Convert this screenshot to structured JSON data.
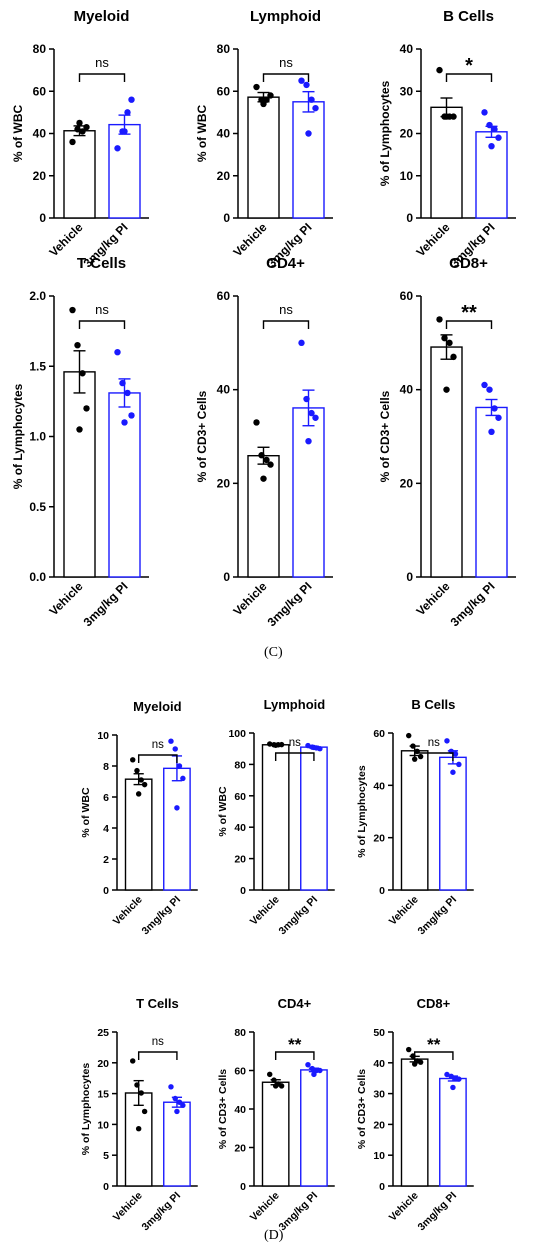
{
  "panel_labels": [
    "(C)",
    "(D)"
  ],
  "colors": {
    "vehicle": "#000000",
    "treated": "#1a1aff"
  },
  "chart_data": [
    {
      "type": "bar",
      "title": "Myeloid",
      "ylabel": "% of WBC",
      "categories": [
        "Vehicle",
        "3mg/kg PI"
      ],
      "ylim": [
        0,
        80
      ],
      "yticks": [
        0,
        20,
        40,
        60,
        80
      ],
      "significance": "ns",
      "series": [
        {
          "values": [
            41.3,
            44.2
          ],
          "sem": [
            2.3,
            4.5
          ],
          "points": [
            [
              36,
              42,
              41,
              43,
              45
            ],
            [
              33,
              41,
              50,
              56,
              41
            ]
          ]
        }
      ]
    },
    {
      "type": "bar",
      "title": "Lymphoid",
      "ylabel": "% of WBC",
      "categories": [
        "Vehicle",
        "3mg/kg PI"
      ],
      "ylim": [
        0,
        80
      ],
      "yticks": [
        0,
        20,
        40,
        60,
        80
      ],
      "significance": "ns",
      "series": [
        {
          "values": [
            57.2,
            55.0
          ],
          "sem": [
            2.2,
            4.8
          ],
          "points": [
            [
              62,
              56,
              56,
              58,
              54
            ],
            [
              65,
              63,
              56,
              52,
              40
            ]
          ]
        }
      ]
    },
    {
      "type": "bar",
      "title": "B Cells",
      "ylabel": "% of Lymphocytes",
      "categories": [
        "Vehicle",
        "3mg/kg PI"
      ],
      "ylim": [
        0,
        40
      ],
      "yticks": [
        0,
        10,
        20,
        30,
        40
      ],
      "significance": "*",
      "series": [
        {
          "values": [
            26.2,
            20.4
          ],
          "sem": [
            2.2,
            1.3
          ],
          "points": [
            [
              35,
              24,
              24,
              24,
              24
            ],
            [
              25,
              22,
              21,
              19,
              17
            ]
          ]
        }
      ]
    },
    {
      "type": "bar",
      "title": "T Cells",
      "ylabel": "% of  Lymphocytes",
      "categories": [
        "Vehicle",
        "3mg/kg PI"
      ],
      "ylim": [
        0,
        2.0
      ],
      "yticks": [
        "0.0",
        "0.5",
        "1.0",
        "1.5",
        "2.0"
      ],
      "significance": "ns",
      "series": [
        {
          "values": [
            1.46,
            1.31
          ],
          "sem": [
            0.15,
            0.1
          ],
          "points": [
            [
              1.9,
              1.65,
              1.45,
              1.2,
              1.05
            ],
            [
              1.6,
              1.38,
              1.31,
              1.15,
              1.1
            ]
          ]
        }
      ]
    },
    {
      "type": "bar",
      "title": "CD4+",
      "ylabel": "% of  CD3+ Cells",
      "categories": [
        "Vehicle",
        "3mg/kg PI"
      ],
      "ylim": [
        0,
        60
      ],
      "yticks": [
        0,
        20,
        40,
        60
      ],
      "significance": "ns",
      "series": [
        {
          "values": [
            25.9,
            36.1
          ],
          "sem": [
            1.8,
            3.8
          ],
          "points": [
            [
              33,
              26,
              25,
              24,
              21
            ],
            [
              50,
              38,
              35,
              34,
              29
            ]
          ]
        }
      ]
    },
    {
      "type": "bar",
      "title": "CD8+",
      "ylabel": "% of CD3+ Cells",
      "categories": [
        "Vehicle",
        "3mg/kg PI"
      ],
      "ylim": [
        0,
        60
      ],
      "yticks": [
        0,
        20,
        40,
        60
      ],
      "significance": "**",
      "series": [
        {
          "values": [
            49.1,
            36.2
          ],
          "sem": [
            2.6,
            1.7
          ],
          "points": [
            [
              55,
              51,
              50,
              47,
              40
            ],
            [
              41,
              40,
              36,
              34,
              31
            ]
          ]
        }
      ]
    },
    {
      "type": "bar",
      "title": "Myeloid",
      "ylabel": "% of WBC",
      "categories": [
        "Vehicle",
        "3mg/kg PI"
      ],
      "ylim": [
        0,
        10
      ],
      "yticks": [
        0,
        2,
        4,
        6,
        8,
        10
      ],
      "significance": "ns",
      "series": [
        {
          "values": [
            7.15,
            7.85
          ],
          "sem": [
            0.35,
            0.8
          ],
          "points": [
            [
              8.4,
              7.7,
              7.1,
              6.8,
              6.2
            ],
            [
              9.6,
              9.1,
              8.0,
              7.2,
              5.3
            ]
          ]
        }
      ]
    },
    {
      "type": "bar",
      "title": "Lymphoid",
      "ylabel": "% of WBC",
      "categories": [
        "Vehicle",
        "3mg/kg PI"
      ],
      "ylim": [
        0,
        100
      ],
      "yticks": [
        0,
        20,
        40,
        60,
        80,
        100
      ],
      "significance": "ns",
      "series": [
        {
          "values": [
            92.5,
            91.0
          ],
          "sem": [
            0.4,
            0.5
          ],
          "points": [
            [
              93,
              92.5,
              92.5,
              92.6,
              92.2
            ],
            [
              92,
              91,
              90.5,
              90,
              90.8
            ]
          ]
        }
      ]
    },
    {
      "type": "bar",
      "title": "B Cells",
      "ylabel": "% of Lymphocytes",
      "categories": [
        "Vehicle",
        "3mg/kg PI"
      ],
      "ylim": [
        0,
        60
      ],
      "yticks": [
        0,
        20,
        40,
        60
      ],
      "significance": "ns",
      "series": [
        {
          "values": [
            53.2,
            50.7
          ],
          "sem": [
            1.8,
            2.5
          ],
          "points": [
            [
              59,
              55,
              53,
              51,
              50
            ],
            [
              57,
              53,
              52,
              48,
              45
            ]
          ]
        }
      ]
    },
    {
      "type": "bar",
      "title": "T Cells",
      "ylabel": "% of  Lymphocytes",
      "categories": [
        "Vehicle",
        "3mg/kg PI"
      ],
      "ylim": [
        0,
        25
      ],
      "yticks": [
        0,
        5,
        10,
        15,
        20,
        25
      ],
      "significance": "ns",
      "series": [
        {
          "values": [
            15.1,
            13.6
          ],
          "sem": [
            2.0,
            0.8
          ],
          "points": [
            [
              20.3,
              16.4,
              15.1,
              12.1,
              9.3
            ],
            [
              16.1,
              14.2,
              13.6,
              13.1,
              12.1
            ]
          ]
        }
      ]
    },
    {
      "type": "bar",
      "title": "CD4+",
      "ylabel": "% of  CD3+ Cells",
      "categories": [
        "Vehicle",
        "3mg/kg PI"
      ],
      "ylim": [
        0,
        80
      ],
      "yticks": [
        0,
        20,
        40,
        60,
        80
      ],
      "significance": "**",
      "series": [
        {
          "values": [
            53.9,
            60.3
          ],
          "sem": [
            1.3,
            0.9
          ],
          "points": [
            [
              58,
              55,
              53,
              52,
              52
            ],
            [
              63,
              61,
              60,
              60,
              58
            ]
          ]
        }
      ]
    },
    {
      "type": "bar",
      "title": "CD8+",
      "ylabel": "% of CD3+ Cells",
      "categories": [
        "Vehicle",
        "3mg/kg PI"
      ],
      "ylim": [
        0,
        50
      ],
      "yticks": [
        0,
        10,
        20,
        30,
        40,
        50
      ],
      "significance": "**",
      "series": [
        {
          "values": [
            41.2,
            34.9
          ],
          "sem": [
            0.9,
            0.8
          ],
          "points": [
            [
              44.3,
              42.2,
              40.6,
              40.2,
              39.6
            ],
            [
              36.2,
              35.6,
              35.0,
              34.7,
              32.0
            ]
          ]
        }
      ]
    }
  ]
}
